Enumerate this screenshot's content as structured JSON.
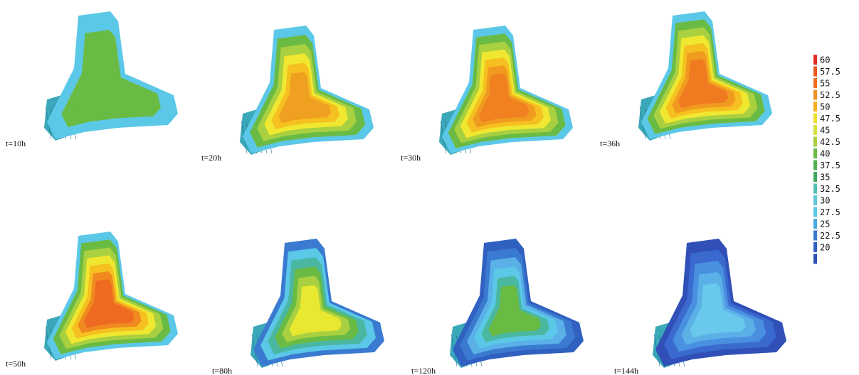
{
  "panels": [
    {
      "label": "t=10h",
      "contour_colors": [
        "#5bc8e8",
        "#6abb44",
        "#6abb44"
      ]
    },
    {
      "label": "t=20h",
      "contour_colors": [
        "#5bc8e8",
        "#6abb44",
        "#a8d040",
        "#f0e830",
        "#f5c020",
        "#f0a020"
      ]
    },
    {
      "label": "t=30h",
      "contour_colors": [
        "#5bc8e8",
        "#6abb44",
        "#a8d040",
        "#f0e830",
        "#f5c020",
        "#f09a20",
        "#f08020"
      ]
    },
    {
      "label": "t=36h",
      "contour_colors": [
        "#5bc8e8",
        "#6abb44",
        "#a8d040",
        "#f0e830",
        "#f5c020",
        "#f09a20",
        "#ef7a20"
      ]
    },
    {
      "label": "t=50h",
      "contour_colors": [
        "#5bc8e8",
        "#6abb44",
        "#a8d040",
        "#f0e830",
        "#f5c020",
        "#f08a20",
        "#ee6a20"
      ]
    },
    {
      "label": "t=80h",
      "contour_colors": [
        "#3a7ad0",
        "#5bc8e8",
        "#4ab8a0",
        "#6abb44",
        "#a8d040",
        "#e8e830"
      ]
    },
    {
      "label": "t=120h",
      "contour_colors": [
        "#3060c0",
        "#3a7ad0",
        "#5bb0e8",
        "#5bc8e8",
        "#4ab8a0",
        "#6abb44"
      ]
    },
    {
      "label": "t=144h",
      "contour_colors": [
        "#3050b8",
        "#3a6ad0",
        "#4a90e0",
        "#5bb0e8",
        "#6ac8ec"
      ]
    }
  ],
  "legend": [
    {
      "label": "60",
      "color": "#e03020"
    },
    {
      "label": "57.5",
      "color": "#e85a20"
    },
    {
      "label": "55",
      "color": "#ee7020"
    },
    {
      "label": "52.5",
      "color": "#f09020"
    },
    {
      "label": "50",
      "color": "#f5b020"
    },
    {
      "label": "47.5",
      "color": "#f0e030"
    },
    {
      "label": "45",
      "color": "#d8e040"
    },
    {
      "label": "42.5",
      "color": "#a8d040"
    },
    {
      "label": "40",
      "color": "#6abb44"
    },
    {
      "label": "37.5",
      "color": "#50b050"
    },
    {
      "label": "35",
      "color": "#40a860"
    },
    {
      "label": "32.5",
      "color": "#50c0b0"
    },
    {
      "label": "30",
      "color": "#60c8d8"
    },
    {
      "label": "27.5",
      "color": "#5bc8e8"
    },
    {
      "label": "25",
      "color": "#4aa8e0"
    },
    {
      "label": "22.5",
      "color": "#3a7ad0"
    },
    {
      "label": "20",
      "color": "#3060c0"
    },
    {
      "label": null,
      "color": "#3050b8"
    }
  ]
}
